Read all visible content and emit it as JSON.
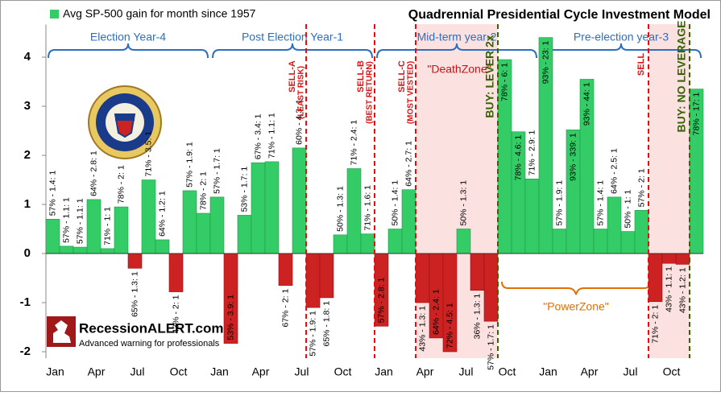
{
  "chart_data": {
    "type": "bar",
    "title": "Quadrennial Presidential Cycle Investment Model",
    "legend": "Avg SP-500 gain for month since 1957",
    "positive_color": "#33cc66",
    "negative_color": "#cc2222",
    "ylim": [
      -2,
      4.5
    ],
    "yticks": [
      -2,
      -1,
      0,
      1,
      2,
      3,
      4
    ],
    "categories": [
      "Jan",
      null,
      null,
      "Apr",
      null,
      null,
      "Jul",
      null,
      null,
      "Oct",
      null,
      null,
      "Jan",
      null,
      null,
      "Apr",
      null,
      null,
      "Jul",
      null,
      null,
      "Oct",
      null,
      null,
      "Jan",
      null,
      null,
      "Apr",
      null,
      null,
      "Jul",
      null,
      null,
      "Oct",
      null,
      null,
      "Jan",
      null,
      null,
      "Apr",
      null,
      null,
      "Jul",
      null,
      null,
      "Oct",
      null,
      null
    ],
    "values": [
      0.7,
      0.15,
      0.13,
      1.1,
      0.1,
      0.95,
      -0.3,
      1.5,
      0.28,
      -0.78,
      1.28,
      0.82,
      1.15,
      -1.83,
      0.78,
      1.85,
      1.87,
      -0.65,
      2.15,
      -1.1,
      -0.9,
      0.38,
      1.73,
      0.4,
      -1.48,
      0.5,
      1.3,
      -1.0,
      -1.72,
      -2.0,
      0.5,
      -0.75,
      -1.38,
      3.95,
      2.48,
      1.52,
      4.4,
      0.5,
      2.52,
      3.55,
      0.5,
      1.15,
      0.45,
      0.88,
      -0.98,
      -0.2,
      -0.22,
      3.35
    ],
    "bar_notes": [
      "57% - 1.4: 1",
      "57% - 1.1: 1",
      "57% - 1.1: 1",
      "64% - 2.8: 1",
      "71% - 1: 1",
      "78% - 2: 1",
      "65% - 1.3: 1",
      "71% - 3.5: 1",
      "64% - 1.2: 1",
      "43% - 2: 1",
      "57% - 1.9: 1",
      "78% - 2: 1",
      "57% - 1.7: 1",
      "53% - 3.9: 1",
      "53% - 1.7: 1",
      "67% - 3.4: 1",
      "71% - 1.1: 1",
      "67% - 2: 1",
      "60% - 4.3: 1",
      "57% - 1.9: 1",
      "65% - 1.8: 1",
      "50% - 1.3: 1",
      "71% - 2.4: 1",
      "71% - 1.6: 1",
      "57% - 2.8: 1",
      "50% - 1.4: 1",
      "64% - 2.7: 1",
      "43% - 1.3: 1",
      "64% - 2.4: 1",
      "72% - 4.5: 1",
      "50% - 1.3: 1",
      "36% - 1.3: 1",
      "57% - 1.7: 1",
      "78% - 6: 1",
      "78% - 4.6: 1",
      "71% - 2.9: 1",
      "93% - 23: 1",
      "57% - 1.9: 1",
      "93% - 339: 1",
      "93% - 44: 1",
      "57% - 1.4: 1",
      "64% - 2.5: 1",
      "50% - 1: 1",
      "57% - 2: 1",
      "71% - 2: 1",
      "43% - 1.1: 1",
      "43% - 1.2: 1",
      "78% - 17: 1"
    ],
    "years": [
      "Election Year-4",
      "Post Election Year-1",
      "Mid-term year-2",
      "Pre-election year-3"
    ],
    "markers": [
      {
        "text": "SELL-A",
        "subtext": "(LEAST RISK)",
        "color": "#dd1111"
      },
      {
        "text": "SELL-B",
        "subtext": "(BEST RETURN)",
        "color": "#dd1111"
      },
      {
        "text": "SELL-C",
        "subtext": "(MOST VESTED)",
        "color": "#dd1111"
      },
      {
        "text": "BUY: LEVER 2x",
        "color": "#336600"
      },
      {
        "text": "SELL",
        "color": "#dd1111"
      },
      {
        "text": "BUY: NO LEVERAGE",
        "color": "#336600"
      }
    ],
    "zones": [
      "\"DeathZone\"",
      "\"PowerZone\""
    ],
    "brand": "RecessionALERT.com",
    "tagline": "Advanced warning for professionals"
  }
}
